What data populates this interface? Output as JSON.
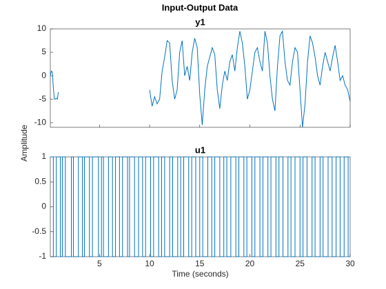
{
  "figure": {
    "title": "Input-Output Data",
    "ylabel": "Amplitude"
  },
  "chart_data": [
    {
      "type": "line",
      "title": "y1",
      "color": "#0072bd",
      "xlim": [
        0.1,
        30
      ],
      "ylim": [
        -11,
        10
      ],
      "yticks": [
        -10,
        -5,
        0,
        5,
        10
      ],
      "x": [
        0.1,
        0.2,
        0.3,
        0.4,
        0.5,
        0.6,
        0.7,
        0.8,
        0.9,
        5,
        10,
        10.25,
        10.5,
        10.75,
        11,
        11.25,
        11.5,
        11.75,
        12,
        12.25,
        12.5,
        12.75,
        13,
        13.25,
        13.5,
        13.75,
        14,
        14.25,
        14.5,
        14.75,
        15,
        15.25,
        15.5,
        15.75,
        16,
        16.25,
        16.5,
        16.75,
        17,
        17.25,
        17.5,
        17.75,
        18,
        18.25,
        18.5,
        18.75,
        19,
        19.25,
        19.5,
        19.75,
        20,
        20.25,
        20.5,
        20.75,
        21,
        21.25,
        21.5,
        21.75,
        22,
        22.25,
        22.5,
        22.75,
        23,
        23.25,
        23.5,
        23.75,
        24,
        24.25,
        24.5,
        24.75,
        25,
        25.25,
        25.5,
        25.75,
        26,
        26.25,
        26.5,
        26.75,
        27,
        27.25,
        27.5,
        27.75,
        28,
        28.25,
        28.5,
        28.75,
        29,
        29.25,
        29.5,
        29.75,
        30
      ],
      "values": [
        0,
        1,
        0.8,
        -2.5,
        -5,
        -5,
        -4.8,
        -5,
        -3.5,
        null,
        -3,
        -6.5,
        -4.5,
        -6,
        -5,
        1,
        4,
        7.5,
        7,
        -1,
        -5,
        -3,
        5,
        7.5,
        0,
        2,
        -1,
        5,
        8,
        6,
        -4,
        -10.5,
        -3,
        2,
        4,
        6,
        4.5,
        -3,
        -7,
        -2,
        1,
        -1,
        3,
        4.5,
        1,
        6,
        9.5,
        7,
        2,
        -5,
        -3,
        1,
        5,
        6,
        3,
        1,
        9.5,
        7,
        0,
        -5,
        -7.5,
        2,
        8.5,
        9.5,
        3,
        -1,
        -2,
        3,
        6,
        5,
        -3,
        -11,
        -6,
        3,
        8.5,
        7,
        4,
        0,
        -2,
        2,
        5,
        3,
        1,
        4,
        6.5,
        3,
        -1,
        0,
        -2,
        -3,
        -5.5
      ]
    },
    {
      "type": "stairs",
      "title": "u1",
      "color": "#0072bd",
      "xlabel": "Time (seconds)",
      "xlim": [
        0.1,
        30
      ],
      "ylim": [
        -1,
        1
      ],
      "yticks": [
        -1,
        -0.5,
        0,
        0.5,
        1
      ],
      "xticks": [
        5,
        10,
        15,
        20,
        25,
        30
      ],
      "x": [
        0.1,
        0.4,
        0.7,
        1.1,
        1.3,
        1.6,
        2.2,
        2.4,
        2.9,
        3.3,
        3.5,
        4.0,
        4.3,
        4.9,
        5.2,
        5.4,
        5.9,
        6.3,
        6.6,
        7.0,
        7.3,
        7.8,
        8.0,
        8.5,
        8.9,
        9.3,
        9.6,
        10.1,
        10.4,
        10.9,
        11.2,
        11.5,
        12.0,
        12.3,
        12.8,
        13.1,
        13.4,
        13.9,
        14.2,
        14.6,
        15.0,
        15.3,
        15.8,
        16.2,
        16.5,
        17.0,
        17.4,
        17.7,
        18.1,
        18.6,
        18.9,
        19.4,
        19.7,
        20.2,
        20.5,
        21.0,
        21.3,
        21.8,
        22.1,
        22.6,
        22.9,
        23.3,
        23.8,
        24.1,
        24.5,
        25.0,
        25.3,
        25.7,
        26.2,
        26.5,
        27.0,
        27.3,
        27.8,
        28.2,
        28.6,
        29.0,
        29.4,
        29.8,
        30.0
      ],
      "values": [
        1,
        -1,
        1,
        -1,
        1,
        -1,
        1,
        -1,
        1,
        -1,
        1,
        -1,
        1,
        -1,
        1,
        -1,
        1,
        -1,
        1,
        -1,
        1,
        -1,
        1,
        -1,
        1,
        -1,
        1,
        -1,
        1,
        -1,
        1,
        -1,
        1,
        -1,
        1,
        -1,
        1,
        -1,
        1,
        -1,
        1,
        -1,
        1,
        -1,
        1,
        -1,
        1,
        -1,
        1,
        -1,
        1,
        -1,
        1,
        -1,
        1,
        -1,
        1,
        -1,
        1,
        -1,
        1,
        -1,
        1,
        -1,
        1,
        -1,
        1,
        -1,
        1,
        -1,
        1,
        -1,
        1,
        -1,
        1,
        -1,
        1,
        -1,
        -1
      ]
    }
  ]
}
